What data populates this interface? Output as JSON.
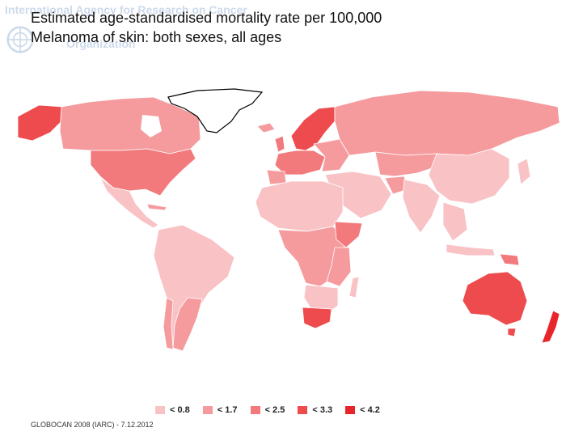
{
  "watermark": {
    "line1": "International Agency for Research on Cancer",
    "line2": "Organization"
  },
  "title": {
    "line1": "Estimated age-standardised mortality rate per 100,000",
    "line2": "Melanoma of skin: both sexes, all ages"
  },
  "legend": [
    {
      "label": "< 0.8",
      "color": "#f9c3c6"
    },
    {
      "label": "< 1.7",
      "color": "#f59b9e"
    },
    {
      "label": "< 2.5",
      "color": "#f2797c"
    },
    {
      "label": "< 3.3",
      "color": "#ee4b4e"
    },
    {
      "label": "< 4.2",
      "color": "#e8252b"
    }
  ],
  "footer": "GLOBOCAN 2008 (IARC) - 7.12.2012",
  "colors": {
    "no_data": "#ffffff",
    "outline": "#ffffff"
  }
}
